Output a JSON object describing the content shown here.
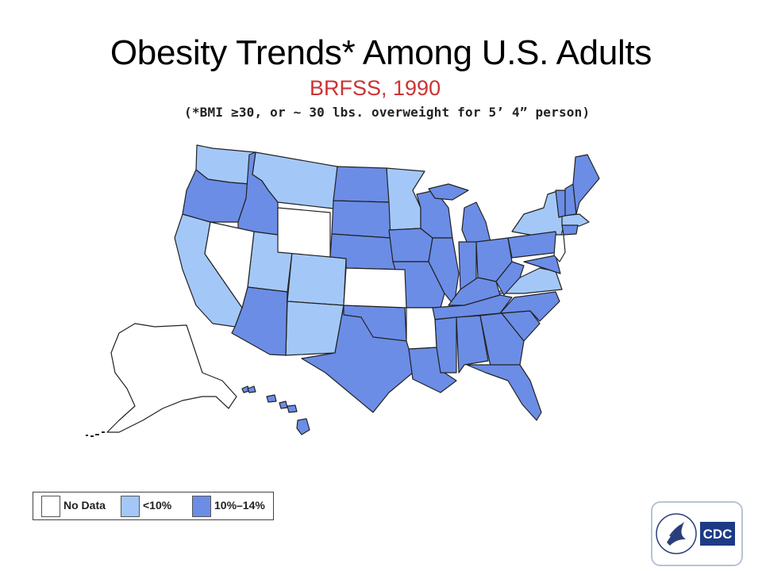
{
  "header": {
    "title": "Obesity Trends* Among U.S. Adults",
    "subtitle": "BRFSS, 1990",
    "note": "(*BMI ≥30, or ~ 30 lbs. overweight for 5’ 4” person)"
  },
  "colors": {
    "no_data": "#ffffff",
    "lt10": "#a3c8f8",
    "10_14": "#6b8de6",
    "border": "#222222"
  },
  "legend": {
    "items": [
      {
        "label": "No Data",
        "color": "#ffffff"
      },
      {
        "label": "<10%",
        "color": "#a3c8f8"
      },
      {
        "label": "10%–14%",
        "color": "#6b8de6"
      }
    ]
  },
  "logo": {
    "text": "CDC"
  }
}
